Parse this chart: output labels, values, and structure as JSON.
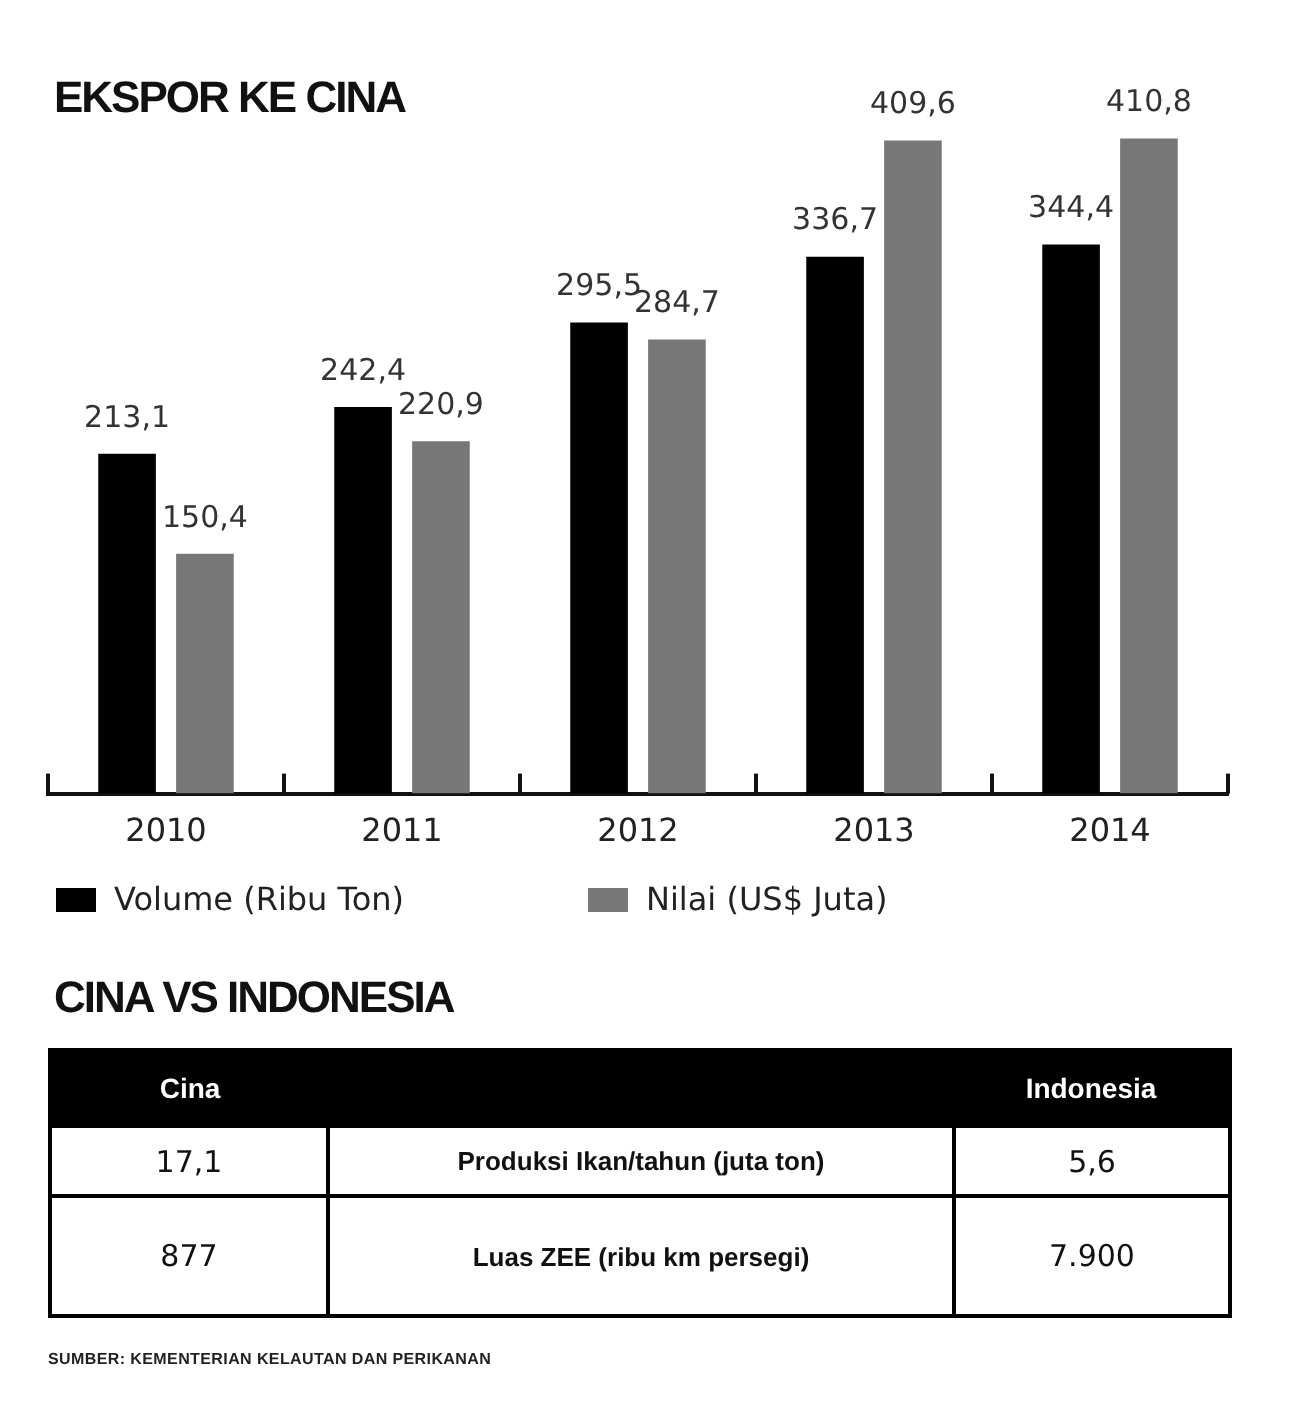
{
  "chart_data": [
    {
      "type": "bar",
      "title": "EKSPOR KE CINA",
      "categories": [
        "2010",
        "2011",
        "2012",
        "2013",
        "2014"
      ],
      "series": [
        {
          "name": "Volume (Ribu Ton)",
          "color": "#000000",
          "values": [
            213.1,
            242.4,
            295.5,
            336.7,
            344.4
          ],
          "value_labels": [
            "213,1",
            "242,4",
            "295,5",
            "336,7",
            "344,4"
          ]
        },
        {
          "name": "Nilai (US$ Juta)",
          "color": "#777777",
          "values": [
            150.4,
            220.9,
            284.7,
            409.6,
            410.8
          ],
          "value_labels": [
            "150,4",
            "220,9",
            "284,7",
            "409,6",
            "410,8"
          ]
        }
      ],
      "legend": "bottom left",
      "tick_labels": "x"
    },
    {
      "type": "other",
      "title": "CINA VS INDONESIA",
      "categories": [
        "Produksi Ikan/tahun (juta ton)",
        "Luas ZEE (ribu km persegi)"
      ],
      "series": [
        {
          "name": "Cina",
          "values": [
            17.1,
            877
          ],
          "value_labels": [
            "17,1",
            "877"
          ]
        },
        {
          "name": "Indonesia",
          "values": [
            5.6,
            7900
          ],
          "value_labels": [
            "5,6",
            "7.900"
          ]
        }
      ],
      "annotations": [
        "SUMBER: KEMENTERIAN KELAUTAN DAN PERIKANAN"
      ]
    }
  ]
}
